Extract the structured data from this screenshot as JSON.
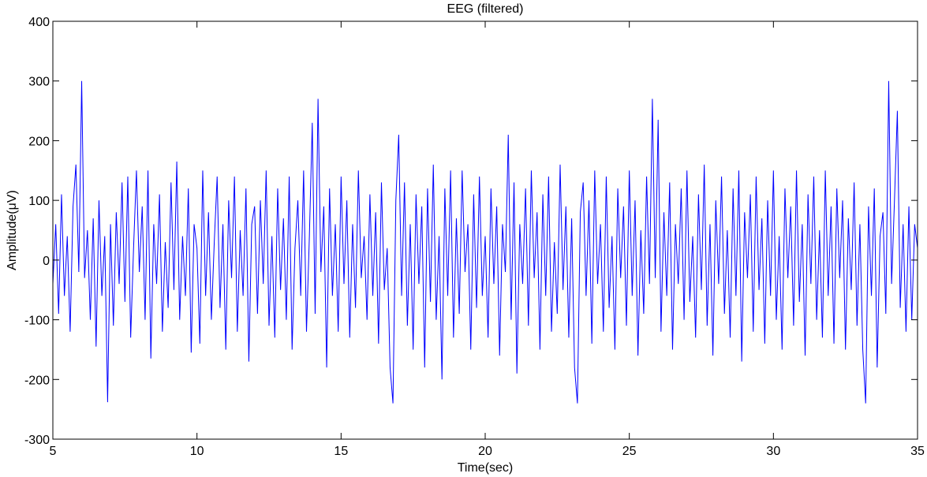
{
  "chart_data": {
    "type": "line",
    "title": "EEG (filtered)",
    "xlabel": "Time(sec)",
    "ylabel": "Amplitude(μV)",
    "color": "#0000ff",
    "x": [
      5,
      5.1,
      5.2,
      5.3,
      5.4,
      5.5,
      5.6,
      5.7,
      5.8,
      5.9,
      6,
      6.1,
      6.2,
      6.3,
      6.4,
      6.5,
      6.6,
      6.7,
      6.8,
      6.9,
      7,
      7.1,
      7.2,
      7.3,
      7.4,
      7.5,
      7.6,
      7.7,
      7.8,
      7.9,
      8,
      8.1,
      8.2,
      8.3,
      8.4,
      8.5,
      8.6,
      8.7,
      8.8,
      8.9,
      9,
      9.1,
      9.2,
      9.3,
      9.4,
      9.5,
      9.6,
      9.7,
      9.8,
      9.9,
      10,
      10.1,
      10.2,
      10.3,
      10.4,
      10.5,
      10.6,
      10.7,
      10.8,
      10.9,
      11,
      11.1,
      11.2,
      11.3,
      11.4,
      11.5,
      11.6,
      11.7,
      11.8,
      11.9,
      12,
      12.1,
      12.2,
      12.3,
      12.4,
      12.5,
      12.6,
      12.7,
      12.8,
      12.9,
      13,
      13.1,
      13.2,
      13.3,
      13.4,
      13.5,
      13.6,
      13.7,
      13.8,
      13.9,
      14,
      14.1,
      14.2,
      14.3,
      14.4,
      14.5,
      14.6,
      14.7,
      14.8,
      14.9,
      15,
      15.1,
      15.2,
      15.3,
      15.4,
      15.5,
      15.6,
      15.7,
      15.8,
      15.9,
      16,
      16.1,
      16.2,
      16.3,
      16.4,
      16.5,
      16.6,
      16.7,
      16.8,
      16.9,
      17,
      17.1,
      17.2,
      17.3,
      17.4,
      17.5,
      17.6,
      17.7,
      17.8,
      17.9,
      18,
      18.1,
      18.2,
      18.3,
      18.4,
      18.5,
      18.6,
      18.7,
      18.8,
      18.9,
      19,
      19.1,
      19.2,
      19.3,
      19.4,
      19.5,
      19.6,
      19.7,
      19.8,
      19.9,
      20,
      20.1,
      20.2,
      20.3,
      20.4,
      20.5,
      20.6,
      20.7,
      20.8,
      20.9,
      21,
      21.1,
      21.2,
      21.3,
      21.4,
      21.5,
      21.6,
      21.7,
      21.8,
      21.9,
      22,
      22.1,
      22.2,
      22.3,
      22.4,
      22.5,
      22.6,
      22.7,
      22.8,
      22.9,
      23,
      23.1,
      23.2,
      23.3,
      23.4,
      23.5,
      23.6,
      23.7,
      23.8,
      23.9,
      24,
      24.1,
      24.2,
      24.3,
      24.4,
      24.5,
      24.6,
      24.7,
      24.8,
      24.9,
      25,
      25.1,
      25.2,
      25.3,
      25.4,
      25.5,
      25.6,
      25.7,
      25.8,
      25.9,
      26,
      26.1,
      26.2,
      26.3,
      26.4,
      26.5,
      26.6,
      26.7,
      26.8,
      26.9,
      27,
      27.1,
      27.2,
      27.3,
      27.4,
      27.5,
      27.6,
      27.7,
      27.8,
      27.9,
      28,
      28.1,
      28.2,
      28.3,
      28.4,
      28.5,
      28.6,
      28.7,
      28.8,
      28.9,
      29,
      29.1,
      29.2,
      29.3,
      29.4,
      29.5,
      29.6,
      29.7,
      29.8,
      29.9,
      30,
      30.1,
      30.2,
      30.3,
      30.4,
      30.5,
      30.6,
      30.7,
      30.8,
      30.9,
      31,
      31.1,
      31.2,
      31.3,
      31.4,
      31.5,
      31.6,
      31.7,
      31.8,
      31.9,
      32,
      32.1,
      32.2,
      32.3,
      32.4,
      32.5,
      32.6,
      32.7,
      32.8,
      32.9,
      33,
      33.1,
      33.2,
      33.3,
      33.4,
      33.5,
      33.6,
      33.7,
      33.8,
      33.9,
      34,
      34.1,
      34.2,
      34.3,
      34.4,
      34.5,
      34.6,
      34.7,
      34.8,
      34.9,
      35
    ],
    "values": [
      -40,
      60,
      -90,
      110,
      -60,
      40,
      -120,
      90,
      160,
      -20,
      300,
      -30,
      50,
      -100,
      70,
      -145,
      100,
      -60,
      40,
      -238,
      60,
      -110,
      80,
      -40,
      130,
      -70,
      140,
      -130,
      20,
      150,
      -20,
      90,
      -100,
      150,
      -165,
      60,
      -40,
      110,
      -120,
      30,
      -80,
      130,
      -50,
      165,
      -100,
      40,
      -60,
      120,
      -155,
      60,
      20,
      -140,
      150,
      -60,
      80,
      -100,
      30,
      140,
      -80,
      60,
      -150,
      100,
      -30,
      140,
      -120,
      50,
      -60,
      120,
      -170,
      60,
      90,
      -90,
      100,
      -40,
      150,
      -110,
      40,
      -130,
      120,
      -50,
      70,
      -100,
      140,
      -150,
      20,
      100,
      -60,
      150,
      -120,
      40,
      230,
      -90,
      270,
      -20,
      90,
      -180,
      120,
      -60,
      60,
      -120,
      140,
      -40,
      100,
      -130,
      60,
      -80,
      150,
      -30,
      40,
      -100,
      110,
      -60,
      80,
      -140,
      130,
      -50,
      20,
      -180,
      -240,
      100,
      210,
      -60,
      130,
      -110,
      60,
      -150,
      110,
      -40,
      90,
      -180,
      120,
      -70,
      160,
      -100,
      40,
      -200,
      120,
      -60,
      150,
      -130,
      70,
      -90,
      150,
      -20,
      60,
      -150,
      110,
      -80,
      140,
      -60,
      40,
      -130,
      120,
      -40,
      90,
      -160,
      60,
      -20,
      210,
      -100,
      130,
      -190,
      60,
      -40,
      120,
      -110,
      150,
      -30,
      80,
      -150,
      110,
      -60,
      140,
      -120,
      30,
      -90,
      160,
      -50,
      90,
      -130,
      70,
      -180,
      -240,
      80,
      130,
      -60,
      100,
      -140,
      150,
      -40,
      60,
      -120,
      140,
      -80,
      40,
      -150,
      120,
      -30,
      90,
      -110,
      150,
      -60,
      100,
      -160,
      50,
      -90,
      140,
      -40,
      270,
      -30,
      235,
      -120,
      80,
      -60,
      130,
      -150,
      60,
      -40,
      120,
      -100,
      150,
      -70,
      40,
      -130,
      110,
      -50,
      160,
      -110,
      60,
      -160,
      100,
      -40,
      140,
      -90,
      50,
      -130,
      120,
      -60,
      150,
      -170,
      80,
      -30,
      110,
      -120,
      140,
      -50,
      70,
      -140,
      100,
      -60,
      150,
      -100,
      40,
      -150,
      120,
      -30,
      90,
      -110,
      150,
      -70,
      60,
      -160,
      110,
      -40,
      140,
      -100,
      50,
      -130,
      150,
      -60,
      90,
      -140,
      120,
      -30,
      100,
      -150,
      70,
      -50,
      130,
      -110,
      60,
      -150,
      -240,
      90,
      -60,
      120,
      -180,
      40,
      80,
      -90,
      300,
      -40,
      100,
      250,
      -80,
      60,
      -120,
      90,
      -100,
      60,
      20
    ],
    "xlim": [
      5,
      35
    ],
    "xticks": [
      5,
      10,
      15,
      20,
      25,
      30,
      35
    ],
    "ylim": [
      -300,
      400
    ],
    "yticks": [
      -300,
      -200,
      -100,
      0,
      100,
      200,
      300,
      400
    ]
  }
}
